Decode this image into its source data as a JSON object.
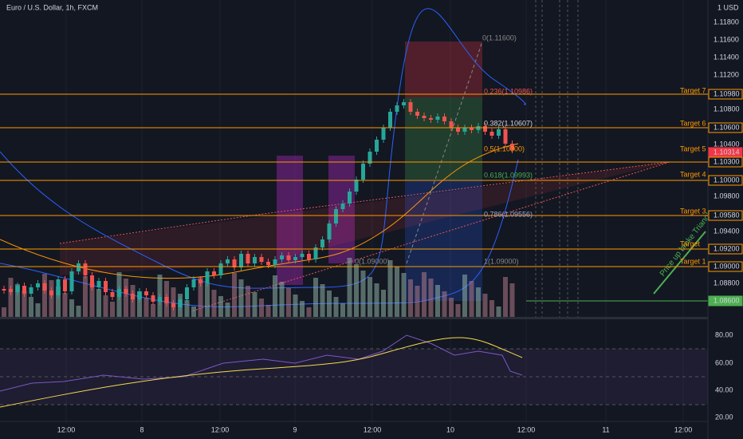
{
  "header": {
    "title": "Euro / U.S. Dollar, 1h, FXCM",
    "currency": "1 USD"
  },
  "price_axis": [
    "1.11800",
    "1.11600",
    "1.11400",
    "1.11200",
    "1.10980",
    "1.10800",
    "1.10600",
    "1.10400",
    "1.10314",
    "1.10300",
    "1.10000",
    "1.09800",
    "1.09580",
    "1.09400",
    "1.09200",
    "1.09000",
    "1.08800",
    "1.08600"
  ],
  "targets": [
    "Target 7",
    "Target 6",
    "Target 5",
    "Target 4",
    "Target 3",
    "Target",
    "Target 1"
  ],
  "fib_labels": [
    "0(1.11600)",
    "0.236(1.10986)",
    "0.382(1.10607)",
    "0.5(1.10300)",
    "0.618(1.09993)",
    "0.786(1.09556)",
    "1(1.09000)",
    "0(1.09000)"
  ],
  "annotation": "Price up broke Triangle",
  "time_axis": [
    "12:00",
    "8",
    "12:00",
    "9",
    "12:00",
    "10",
    "12:00",
    "11",
    "12:00"
  ],
  "rsi_axis": [
    "80.00",
    "60.00",
    "40.00",
    "20.00"
  ]
}
